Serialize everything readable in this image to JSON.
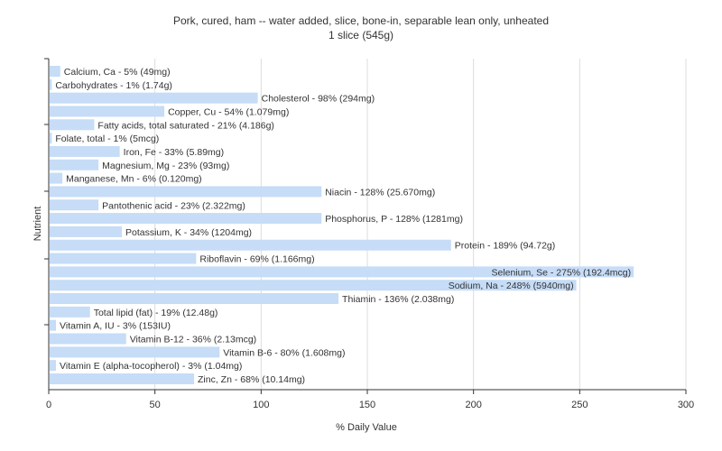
{
  "chart_data": {
    "type": "bar",
    "orientation": "horizontal",
    "title": "Pork, cured, ham -- water added, slice, bone-in, separable lean only, unheated",
    "subtitle": "1 slice (545g)",
    "xlabel": "% Daily Value",
    "ylabel": "Nutrient",
    "xlim": [
      0,
      300
    ],
    "xticks": [
      0,
      50,
      100,
      150,
      200,
      250,
      300
    ],
    "grid": true,
    "bar_color": "#c6dcf7",
    "categories": [
      "Calcium, Ca",
      "Carbohydrates",
      "Cholesterol",
      "Copper, Cu",
      "Fatty acids, total saturated",
      "Folate, total",
      "Iron, Fe",
      "Magnesium, Mg",
      "Manganese, Mn",
      "Niacin",
      "Pantothenic acid",
      "Phosphorus, P",
      "Potassium, K",
      "Protein",
      "Riboflavin",
      "Selenium, Se",
      "Sodium, Na",
      "Thiamin",
      "Total lipid (fat)",
      "Vitamin A, IU",
      "Vitamin B-12",
      "Vitamin B-6",
      "Vitamin E (alpha-tocopherol)",
      "Zinc, Zn"
    ],
    "values": [
      5,
      1,
      98,
      54,
      21,
      1,
      33,
      23,
      6,
      128,
      23,
      128,
      34,
      189,
      69,
      275,
      248,
      136,
      19,
      3,
      36,
      80,
      3,
      68
    ],
    "labels": [
      "Calcium, Ca - 5% (49mg)",
      "Carbohydrates - 1% (1.74g)",
      "Cholesterol - 98% (294mg)",
      "Copper, Cu - 54% (1.079mg)",
      "Fatty acids, total saturated - 21% (4.186g)",
      "Folate, total - 1% (5mcg)",
      "Iron, Fe - 33% (5.89mg)",
      "Magnesium, Mg - 23% (93mg)",
      "Manganese, Mn - 6% (0.120mg)",
      "Niacin - 128% (25.670mg)",
      "Pantothenic acid - 23% (2.322mg)",
      "Phosphorus, P - 128% (1281mg)",
      "Potassium, K - 34% (1204mg)",
      "Protein - 189% (94.72g)",
      "Riboflavin - 69% (1.166mg)",
      "Selenium, Se - 275% (192.4mcg)",
      "Sodium, Na - 248% (5940mg)",
      "Thiamin - 136% (2.038mg)",
      "Total lipid (fat) - 19% (12.48g)",
      "Vitamin A, IU - 3% (153IU)",
      "Vitamin B-12 - 36% (2.13mcg)",
      "Vitamin B-6 - 80% (1.608mg)",
      "Vitamin E (alpha-tocopherol) - 3% (1.04mg)",
      "Zinc, Zn - 68% (10.14mg)"
    ],
    "label_inside": [
      false,
      false,
      false,
      false,
      false,
      false,
      false,
      false,
      false,
      false,
      false,
      false,
      false,
      false,
      false,
      true,
      true,
      false,
      false,
      false,
      false,
      false,
      false,
      false
    ]
  }
}
